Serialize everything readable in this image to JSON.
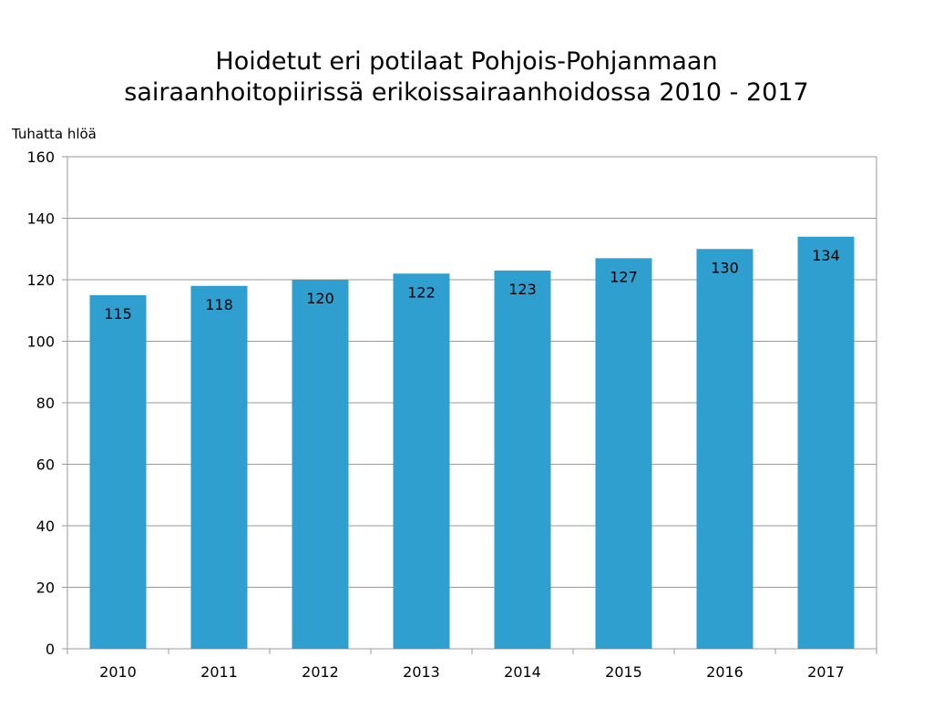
{
  "chart_data": {
    "type": "bar",
    "title_lines": [
      "Hoidetut eri potilaat Pohjois-Pohjanmaan",
      "sairaanhoitopiirissä erikoissairaanhoidossa 2010 - 2017"
    ],
    "ylabel": "Tuhatta hlöä",
    "xlabel": "",
    "categories": [
      "2010",
      "2011",
      "2012",
      "2013",
      "2014",
      "2015",
      "2016",
      "2017"
    ],
    "values": [
      115,
      118,
      120,
      122,
      123,
      127,
      130,
      134
    ],
    "ylim": [
      0,
      160
    ],
    "yticks": [
      "0",
      "20",
      "40",
      "60",
      "80",
      "100",
      "120",
      "140",
      "160"
    ],
    "grid": true,
    "bar_color": "#2e9fcf"
  }
}
